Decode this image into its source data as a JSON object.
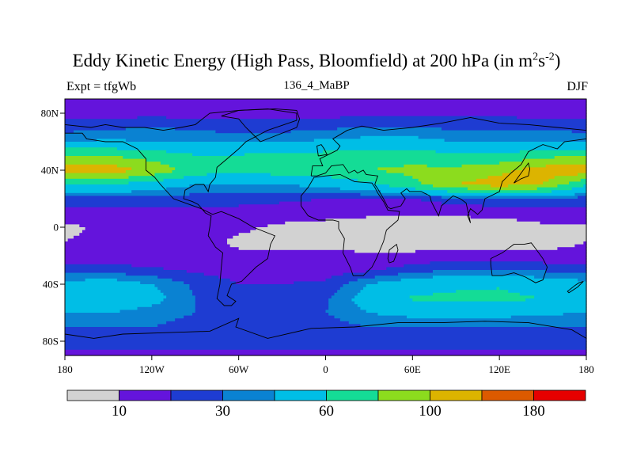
{
  "title": {
    "main": "Eddy Kinetic Energy (High Pass, Bloomfield) at 200 hPa (in m",
    "sup1": "2",
    "mid": "s",
    "sup2": "-2",
    "close": ")"
  },
  "left_label": "Expt = tfgWb",
  "center_label": "136_4_MaBP",
  "right_label": "DJF",
  "colors": {
    "bins": [
      "#d2d2d2",
      "#6414dc",
      "#1e3cd2",
      "#0a82d2",
      "#00bee6",
      "#14dc96",
      "#8cdc1e",
      "#dcb400",
      "#dc5a00",
      "#e60000"
    ],
    "coastline": "#000000"
  },
  "chart_data": {
    "type": "heatmap",
    "subtype": "filled-contour-map",
    "projection": "cylindrical-equidistant",
    "xlim": [
      -180,
      180
    ],
    "ylim": [
      -90,
      90
    ],
    "x_ticks": [
      {
        "value": -180,
        "label": "180"
      },
      {
        "value": -120,
        "label": "120W"
      },
      {
        "value": -60,
        "label": "60W"
      },
      {
        "value": 0,
        "label": "0"
      },
      {
        "value": 60,
        "label": "60E"
      },
      {
        "value": 120,
        "label": "120E"
      },
      {
        "value": 180,
        "label": "180"
      }
    ],
    "y_ticks": [
      {
        "value": 80,
        "label": "80N"
      },
      {
        "value": 40,
        "label": "40N"
      },
      {
        "value": 0,
        "label": "0"
      },
      {
        "value": -40,
        "label": "40S"
      },
      {
        "value": -80,
        "label": "80S"
      }
    ],
    "colorbar": {
      "boundaries": [
        0,
        10,
        20,
        30,
        40,
        60,
        80,
        100,
        140,
        180,
        220
      ],
      "tick_labels": [
        {
          "value": 10,
          "label": "10"
        },
        {
          "value": 30,
          "label": "30"
        },
        {
          "value": 60,
          "label": "60"
        },
        {
          "value": 100,
          "label": "100"
        },
        {
          "value": 180,
          "label": "180"
        }
      ]
    },
    "field_profiles": {
      "lats": [
        -90,
        -80,
        -70,
        -60,
        -50,
        -40,
        -30,
        -20,
        -10,
        0,
        10,
        20,
        30,
        40,
        50,
        60,
        70,
        80,
        90
      ],
      "lons": [
        -180,
        -150,
        -120,
        -90,
        -60,
        -30,
        0,
        30,
        60,
        90,
        120,
        150,
        180
      ],
      "values": [
        [
          15,
          15,
          15,
          15,
          15,
          15,
          15,
          15,
          15,
          15,
          15,
          15,
          15
        ],
        [
          25,
          25,
          25,
          25,
          25,
          25,
          25,
          25,
          25,
          25,
          25,
          25,
          25
        ],
        [
          30,
          30,
          30,
          25,
          22,
          22,
          25,
          30,
          30,
          30,
          30,
          30,
          30
        ],
        [
          40,
          40,
          35,
          30,
          28,
          28,
          30,
          40,
          45,
          45,
          45,
          42,
          40
        ],
        [
          55,
          55,
          45,
          30,
          25,
          25,
          28,
          48,
          62,
          65,
          65,
          60,
          55
        ],
        [
          45,
          48,
          40,
          28,
          20,
          20,
          22,
          40,
          50,
          55,
          58,
          50,
          45
        ],
        [
          25,
          25,
          22,
          18,
          15,
          15,
          15,
          18,
          25,
          30,
          30,
          28,
          25
        ],
        [
          12,
          12,
          12,
          12,
          12,
          12,
          12,
          12,
          12,
          14,
          14,
          12,
          12
        ],
        [
          10,
          12,
          14,
          14,
          8,
          7,
          6,
          5,
          5,
          5,
          5,
          7,
          10
        ],
        [
          8,
          12,
          14,
          14,
          12,
          8,
          6,
          5,
          5,
          5,
          6,
          8,
          8
        ],
        [
          15,
          15,
          15,
          15,
          15,
          15,
          14,
          12,
          12,
          12,
          12,
          15,
          15
        ],
        [
          25,
          25,
          25,
          25,
          25,
          22,
          20,
          20,
          20,
          25,
          30,
          30,
          25
        ],
        [
          60,
          60,
          50,
          40,
          38,
          40,
          45,
          55,
          75,
          100,
          110,
          100,
          60
        ],
        [
          115,
          112,
          95,
          70,
          65,
          70,
          72,
          80,
          85,
          85,
          95,
          110,
          115
        ],
        [
          80,
          80,
          72,
          62,
          62,
          65,
          68,
          72,
          70,
          65,
          65,
          75,
          80
        ],
        [
          40,
          42,
          40,
          38,
          38,
          40,
          42,
          45,
          45,
          40,
          38,
          38,
          40
        ],
        [
          25,
          28,
          30,
          28,
          25,
          25,
          28,
          30,
          30,
          28,
          28,
          28,
          25
        ],
        [
          15,
          16,
          16,
          16,
          15,
          15,
          16,
          17,
          17,
          17,
          17,
          16,
          15
        ],
        [
          12,
          12,
          12,
          12,
          12,
          12,
          12,
          12,
          12,
          12,
          12,
          12,
          12
        ]
      ]
    },
    "coastlines": [
      [
        [
          -180,
          72
        ],
        [
          -162,
          70
        ],
        [
          -152,
          72
        ],
        [
          -140,
          70
        ],
        [
          -125,
          70
        ],
        [
          -112,
          68
        ],
        [
          -100,
          70
        ],
        [
          -90,
          72
        ],
        [
          -80,
          80
        ],
        [
          -60,
          82
        ],
        [
          -40,
          83
        ],
        [
          -20,
          80
        ],
        [
          -20,
          75
        ],
        [
          -40,
          68
        ],
        [
          -55,
          60
        ],
        [
          -60,
          55
        ],
        [
          -68,
          48
        ],
        [
          -75,
          42
        ],
        [
          -76,
          35
        ],
        [
          -80,
          30
        ],
        [
          -81,
          25
        ],
        [
          -84,
          30
        ],
        [
          -90,
          30
        ],
        [
          -97,
          26
        ],
        [
          -98,
          20
        ],
        [
          -92,
          18
        ],
        [
          -88,
          16
        ],
        [
          -83,
          10
        ],
        [
          -79,
          8
        ],
        [
          -80,
          0
        ],
        [
          -81,
          -6
        ],
        [
          -76,
          -14
        ],
        [
          -71,
          -18
        ],
        [
          -72,
          -28
        ],
        [
          -73,
          -40
        ],
        [
          -75,
          -50
        ],
        [
          -70,
          -55
        ],
        [
          -65,
          -55
        ],
        [
          -62,
          -52
        ],
        [
          -68,
          -48
        ],
        [
          -65,
          -40
        ],
        [
          -58,
          -38
        ],
        [
          -48,
          -28
        ],
        [
          -40,
          -22
        ],
        [
          -38,
          -12
        ],
        [
          -35,
          -6
        ],
        [
          -50,
          0
        ],
        [
          -60,
          6
        ],
        [
          -72,
          11
        ],
        [
          -78,
          9
        ],
        [
          -86,
          13
        ],
        [
          -105,
          20
        ],
        [
          -114,
          30
        ],
        [
          -118,
          35
        ],
        [
          -124,
          40
        ],
        [
          -124,
          48
        ],
        [
          -130,
          55
        ],
        [
          -140,
          60
        ],
        [
          -152,
          60
        ],
        [
          -165,
          62
        ],
        [
          -168,
          66
        ],
        [
          -180,
          66
        ]
      ],
      [
        [
          -17,
          15
        ],
        [
          -17,
          22
        ],
        [
          -12,
          28
        ],
        [
          -8,
          35
        ],
        [
          0,
          36
        ],
        [
          10,
          37
        ],
        [
          20,
          32
        ],
        [
          32,
          31
        ],
        [
          34,
          28
        ],
        [
          36,
          24
        ],
        [
          40,
          18
        ],
        [
          43,
          12
        ],
        [
          51,
          11
        ],
        [
          50,
          5
        ],
        [
          42,
          -2
        ],
        [
          40,
          -10
        ],
        [
          35,
          -22
        ],
        [
          32,
          -28
        ],
        [
          26,
          -34
        ],
        [
          19,
          -34
        ],
        [
          17,
          -28
        ],
        [
          12,
          -18
        ],
        [
          13,
          -8
        ],
        [
          9,
          -1
        ],
        [
          9,
          4
        ],
        [
          5,
          5
        ],
        [
          -5,
          5
        ],
        [
          -12,
          8
        ],
        [
          -17,
          15
        ]
      ],
      [
        [
          -10,
          36
        ],
        [
          -9,
          43
        ],
        [
          -2,
          43
        ],
        [
          -4,
          48
        ],
        [
          2,
          51
        ],
        [
          8,
          54
        ],
        [
          10,
          57
        ],
        [
          5,
          62
        ],
        [
          15,
          68
        ],
        [
          25,
          71
        ],
        [
          40,
          68
        ],
        [
          60,
          70
        ],
        [
          80,
          73
        ],
        [
          100,
          77
        ],
        [
          120,
          73
        ],
        [
          140,
          72
        ],
        [
          160,
          70
        ],
        [
          180,
          68
        ],
        [
          180,
          62
        ],
        [
          165,
          60
        ],
        [
          160,
          55
        ],
        [
          150,
          58
        ],
        [
          140,
          53
        ],
        [
          135,
          44
        ],
        [
          128,
          38
        ],
        [
          122,
          32
        ],
        [
          120,
          25
        ],
        [
          110,
          20
        ],
        [
          108,
          12
        ],
        [
          105,
          9
        ],
        [
          100,
          13
        ],
        [
          98,
          8
        ],
        [
          100,
          3
        ],
        [
          97,
          17
        ],
        [
          93,
          20
        ],
        [
          88,
          22
        ],
        [
          80,
          15
        ],
        [
          78,
          8
        ],
        [
          73,
          18
        ],
        [
          72,
          22
        ],
        [
          66,
          25
        ],
        [
          58,
          25
        ],
        [
          56,
          27
        ],
        [
          52,
          24
        ],
        [
          55,
          20
        ],
        [
          52,
          15
        ],
        [
          45,
          13
        ],
        [
          43,
          14
        ],
        [
          40,
          20
        ],
        [
          36,
          27
        ],
        [
          34,
          30
        ],
        [
          36,
          36
        ],
        [
          28,
          37
        ],
        [
          26,
          40
        ],
        [
          22,
          38
        ],
        [
          20,
          40
        ],
        [
          16,
          38
        ],
        [
          12,
          44
        ],
        [
          4,
          43
        ],
        [
          0,
          38
        ],
        [
          -6,
          36
        ],
        [
          -10,
          36
        ]
      ],
      [
        [
          114,
          -22
        ],
        [
          122,
          -18
        ],
        [
          130,
          -12
        ],
        [
          137,
          -12
        ],
        [
          142,
          -11
        ],
        [
          145,
          -15
        ],
        [
          150,
          -22
        ],
        [
          153,
          -28
        ],
        [
          150,
          -37
        ],
        [
          145,
          -39
        ],
        [
          138,
          -35
        ],
        [
          130,
          -32
        ],
        [
          122,
          -34
        ],
        [
          115,
          -34
        ],
        [
          114,
          -26
        ],
        [
          114,
          -22
        ]
      ],
      [
        [
          -180,
          -75
        ],
        [
          -160,
          -78
        ],
        [
          -140,
          -75
        ],
        [
          -110,
          -74
        ],
        [
          -80,
          -73
        ],
        [
          -60,
          -64
        ],
        [
          -62,
          -70
        ],
        [
          -40,
          -78
        ],
        [
          -10,
          -71
        ],
        [
          20,
          -70
        ],
        [
          50,
          -67
        ],
        [
          80,
          -67
        ],
        [
          110,
          -66
        ],
        [
          140,
          -67
        ],
        [
          170,
          -72
        ],
        [
          180,
          -78
        ]
      ],
      [
        [
          -45,
          60
        ],
        [
          -20,
          70
        ],
        [
          -18,
          76
        ],
        [
          -20,
          82
        ],
        [
          -35,
          83
        ],
        [
          -60,
          82
        ],
        [
          -72,
          78
        ],
        [
          -60,
          76
        ],
        [
          -55,
          70
        ],
        [
          -50,
          65
        ],
        [
          -45,
          60
        ]
      ],
      [
        [
          44,
          -25
        ],
        [
          47,
          -24
        ],
        [
          50,
          -16
        ],
        [
          49,
          -12
        ],
        [
          44,
          -16
        ],
        [
          43,
          -22
        ],
        [
          44,
          -25
        ]
      ],
      [
        [
          -5,
          50
        ],
        [
          1,
          51
        ],
        [
          -1,
          55
        ],
        [
          -3,
          58
        ],
        [
          -6,
          57
        ],
        [
          -5,
          50
        ]
      ],
      [
        [
          130,
          31
        ],
        [
          135,
          34
        ],
        [
          140,
          36
        ],
        [
          141,
          41
        ],
        [
          140,
          45
        ],
        [
          135,
          38
        ],
        [
          130,
          31
        ]
      ],
      [
        [
          172,
          -41
        ],
        [
          175,
          -39
        ],
        [
          178,
          -38
        ],
        [
          174,
          -42
        ],
        [
          168,
          -46
        ],
        [
          167,
          -45
        ],
        [
          172,
          -41
        ]
      ]
    ]
  }
}
